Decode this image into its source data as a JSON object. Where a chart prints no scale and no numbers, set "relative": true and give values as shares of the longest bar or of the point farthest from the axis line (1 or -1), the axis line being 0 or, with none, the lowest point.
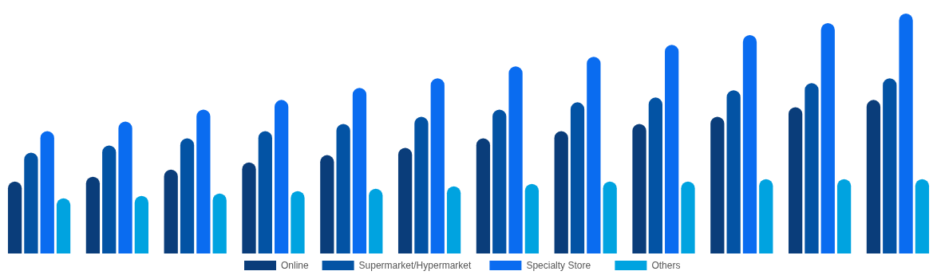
{
  "chart_data": {
    "type": "bar",
    "relative": true,
    "categories": [
      null,
      null,
      null,
      null,
      null,
      null,
      null,
      null,
      null,
      null,
      null,
      null
    ],
    "legend": "bottom",
    "series": [
      {
        "name": "Online",
        "color": "#0a3d7a",
        "values": [
          0.3,
          0.32,
          0.35,
          0.38,
          0.41,
          0.44,
          0.48,
          0.51,
          0.54,
          0.57,
          0.61,
          0.64
        ]
      },
      {
        "name": "Supermarket/Hypermarket",
        "color": "#0353a4",
        "values": [
          0.42,
          0.45,
          0.48,
          0.51,
          0.54,
          0.57,
          0.6,
          0.63,
          0.65,
          0.68,
          0.71,
          0.73
        ]
      },
      {
        "name": "Specialty Store",
        "color": "#0a6cf0",
        "values": [
          0.51,
          0.55,
          0.6,
          0.64,
          0.69,
          0.73,
          0.78,
          0.82,
          0.87,
          0.91,
          0.96,
          1
        ]
      },
      {
        "name": "Others",
        "color": "#00a3e0",
        "values": [
          0.23,
          0.24,
          0.25,
          0.26,
          0.27,
          0.28,
          0.29,
          0.3,
          0.3,
          0.31,
          0.31,
          0.31
        ]
      }
    ]
  }
}
